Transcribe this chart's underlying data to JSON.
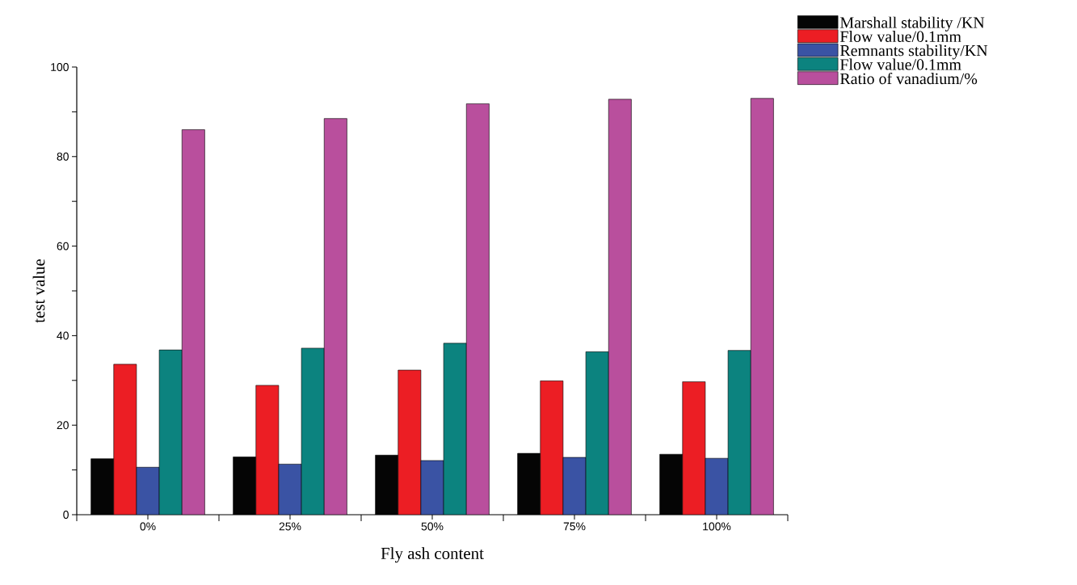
{
  "chart_data": {
    "type": "bar",
    "xlabel": "Fly ash content",
    "ylabel": "test value",
    "categories": [
      "0%",
      "25%",
      "50%",
      "75%",
      "100%"
    ],
    "series": [
      {
        "name": "Marshall stability /KN",
        "color": "#050505",
        "values": [
          12.5,
          12.9,
          13.3,
          13.7,
          13.5
        ]
      },
      {
        "name": "Flow value/0.1mm",
        "color": "#ec1e24",
        "values": [
          33.6,
          28.9,
          32.3,
          29.9,
          29.7
        ]
      },
      {
        "name": "Remnants stability/KN",
        "color": "#3a53a4",
        "values": [
          10.6,
          11.3,
          12.1,
          12.8,
          12.6
        ]
      },
      {
        "name": "Flow value/0.1mm",
        "color": "#0c837f",
        "values": [
          36.8,
          37.2,
          38.3,
          36.4,
          36.7
        ]
      },
      {
        "name": "Ratio of vanadium/%",
        "color": "#b94f9d",
        "values": [
          86.0,
          88.5,
          91.8,
          92.8,
          93.0
        ]
      }
    ],
    "ylim": [
      0,
      100
    ],
    "yticks": [
      0,
      {
        "value": 10,
        "label": null
      },
      20,
      {
        "value": 30,
        "label": null
      },
      40,
      {
        "value": 50,
        "label": null
      },
      60,
      {
        "value": 70,
        "label": null
      },
      80,
      {
        "value": 90,
        "label": null
      },
      100
    ],
    "legend": "top right",
    "grid": false
  }
}
